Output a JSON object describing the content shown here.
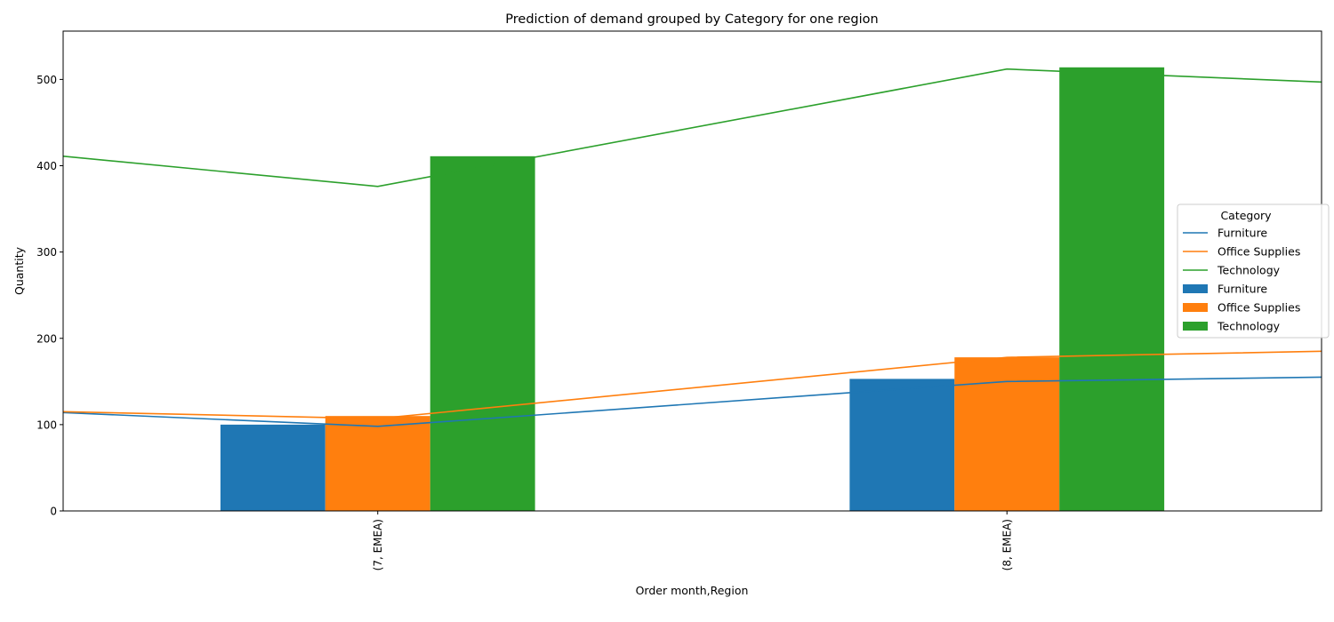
{
  "chart_data": {
    "type": "bar",
    "title": "Prediction of demand grouped by Category for one region",
    "xlabel": "Order month,Region",
    "ylabel": "Quantity",
    "ylim": [
      0,
      556
    ],
    "yticks": [
      0,
      100,
      200,
      300,
      400,
      500
    ],
    "categories": [
      "(7, EMEA)",
      "(8, EMEA)"
    ],
    "legend": {
      "title": "Category",
      "placement": "center-right"
    },
    "bar_series": [
      {
        "name": "Furniture",
        "color": "#1f77b4",
        "values": [
          100,
          153
        ]
      },
      {
        "name": "Office Supplies",
        "color": "#ff7f0e",
        "values": [
          110,
          178
        ]
      },
      {
        "name": "Technology",
        "color": "#2ca02c",
        "values": [
          411,
          514
        ]
      }
    ],
    "line_x_range": [
      -0.5,
      1.5
    ],
    "line_series": [
      {
        "name": "Furniture",
        "color": "#1f77b4",
        "points": [
          [
            -0.5,
            114
          ],
          [
            0,
            98
          ],
          [
            1,
            150
          ],
          [
            1.5,
            155
          ]
        ]
      },
      {
        "name": "Office Supplies",
        "color": "#ff7f0e",
        "points": [
          [
            -0.5,
            115
          ],
          [
            0,
            107
          ],
          [
            1,
            178
          ],
          [
            1.5,
            185
          ]
        ]
      },
      {
        "name": "Technology",
        "color": "#2ca02c",
        "points": [
          [
            -0.5,
            411
          ],
          [
            0,
            376
          ],
          [
            1,
            512
          ],
          [
            1.5,
            497
          ]
        ]
      }
    ]
  }
}
